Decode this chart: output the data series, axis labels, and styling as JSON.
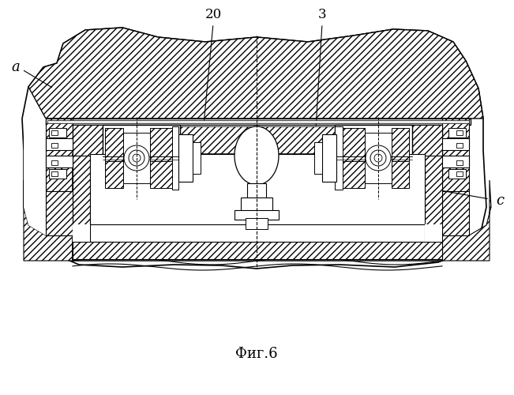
{
  "title": "Фиг.6",
  "label_20": "20",
  "label_3": "3",
  "label_a": "a",
  "label_c": "c",
  "bg_color": "#ffffff",
  "line_color": "#000000",
  "fig_width": 6.51,
  "fig_height": 5.0
}
